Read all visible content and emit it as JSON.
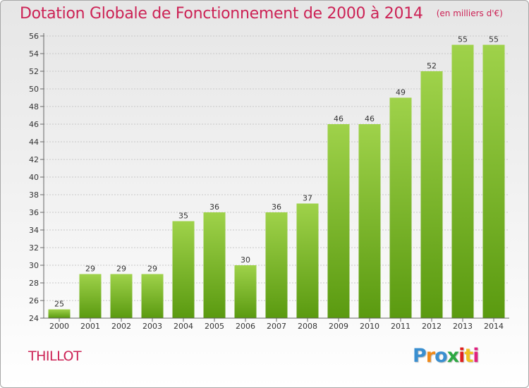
{
  "title": "Dotation Globale de Fonctionnement de 2000 à 2014",
  "unit_note": "(en milliers d'€)",
  "commune": "THILLOT",
  "logo": {
    "text": "Proxiti",
    "colors": [
      "#3a8fd0",
      "#f08a1a",
      "#3a8fd0",
      "#2da843",
      "#e02020",
      "#f0c020",
      "#e02080"
    ]
  },
  "colors": {
    "bar_top": "#9fd24a",
    "bar_bottom": "#5a9a10",
    "grid": "#c8c8c8",
    "title": "#cc2255"
  },
  "chart_data": {
    "type": "bar",
    "title": "Dotation Globale de Fonctionnement de 2000 à 2014",
    "xlabel": "",
    "ylabel": "",
    "categories": [
      "2000",
      "2001",
      "2002",
      "2003",
      "2004",
      "2005",
      "2006",
      "2007",
      "2008",
      "2009",
      "2010",
      "2011",
      "2012",
      "2013",
      "2014"
    ],
    "values": [
      25,
      29,
      29,
      29,
      35,
      36,
      30,
      36,
      37,
      46,
      46,
      49,
      52,
      55,
      55
    ],
    "ylim": [
      24,
      56
    ],
    "yticks": [
      24,
      26,
      28,
      30,
      32,
      34,
      36,
      38,
      40,
      42,
      44,
      46,
      48,
      50,
      52,
      54,
      56
    ],
    "grid": true
  }
}
